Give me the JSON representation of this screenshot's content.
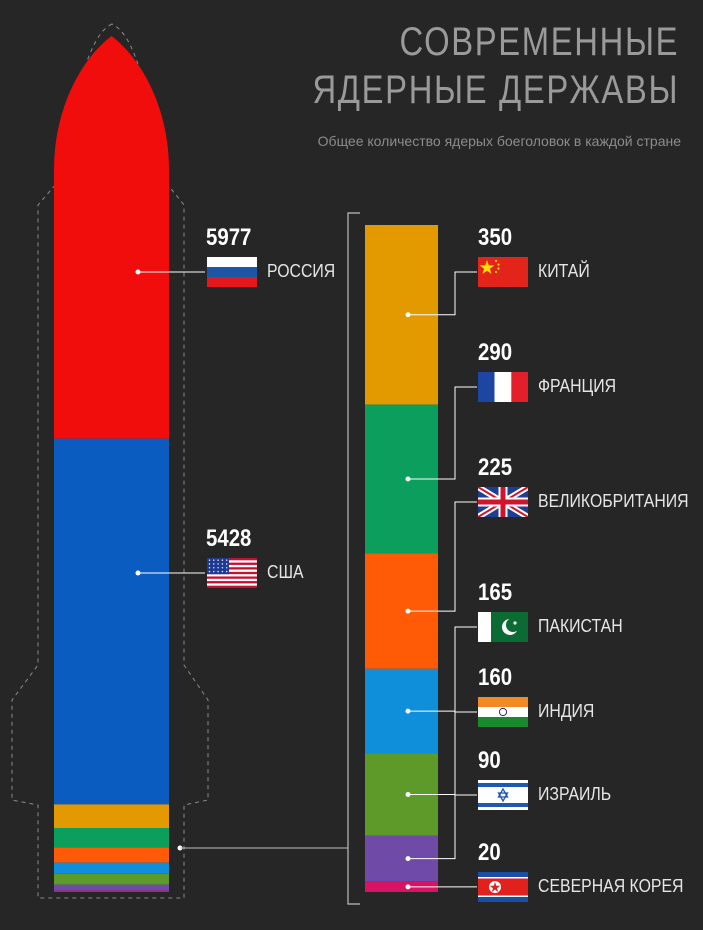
{
  "title_line1": "СОВРЕМЕННЫЕ",
  "title_line2": "ЯДЕРНЫЕ ДЕРЖАВЫ",
  "subtitle": "Общее количество ядерых боеголовок в каждой стране",
  "colors": {
    "background": "#262626",
    "russia": "#f20d0d",
    "usa": "#0b5cc0",
    "china": "#e39a00",
    "france": "#0b9e5c",
    "uk": "#ff5a05",
    "pakistan": "#0f8fd9",
    "india": "#5e9a2a",
    "israel": "#6f4aa6",
    "north_korea": "#d61463"
  },
  "chart_data": {
    "type": "bar",
    "subtype": "stacked",
    "title": "СОВРЕМЕННЫЕ ЯДЕРНЫЕ ДЕРЖАВЫ",
    "subtitle": "Общее количество ядерых боеголовок в каждой стране",
    "series": [
      {
        "name": "РОССИЯ",
        "value": 5977,
        "value_label": "5977",
        "flag": "russia-flag-icon"
      },
      {
        "name": "США",
        "value": 5428,
        "value_label": "5428",
        "flag": "usa-flag-icon"
      },
      {
        "name": "КИТАЙ",
        "value": 350,
        "value_label": "350",
        "flag": "china-flag-icon"
      },
      {
        "name": "ФРАНЦИЯ",
        "value": 290,
        "value_label": "290",
        "flag": "france-flag-icon"
      },
      {
        "name": "ВЕЛИКОБРИТАНИЯ",
        "value": 225,
        "value_label": "225",
        "flag": "uk-flag-icon"
      },
      {
        "name": "ПАКИСТАН",
        "value": 165,
        "value_label": "165",
        "flag": "pakistan-flag-icon"
      },
      {
        "name": "ИНДИЯ",
        "value": 160,
        "value_label": "160",
        "flag": "india-flag-icon"
      },
      {
        "name": "ИЗРАИЛЬ",
        "value": 90,
        "value_label": "90",
        "flag": "israel-flag-icon"
      },
      {
        "name": "СЕВЕРНАЯ КОРЕЯ",
        "value": 20,
        "value_label": "20",
        "flag": "north-korea-flag-icon"
      }
    ]
  }
}
